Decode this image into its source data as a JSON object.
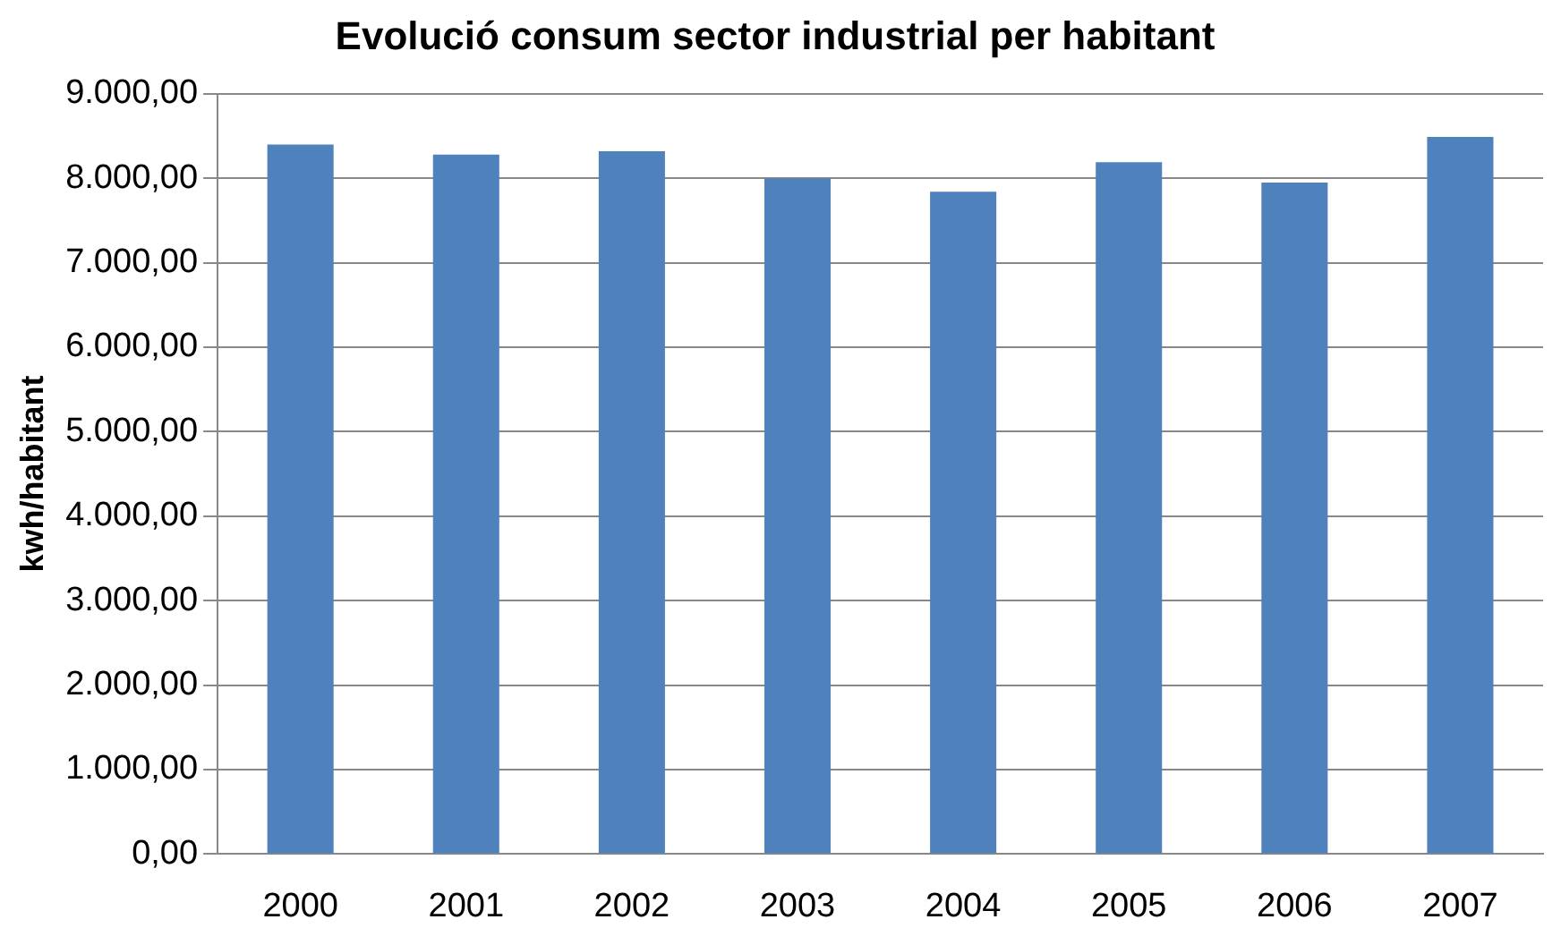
{
  "chart_data": {
    "type": "bar",
    "title": "Evolució consum sector industrial per habitant",
    "ylabel": "kwh/habitant",
    "categories": [
      "2000",
      "2001",
      "2002",
      "2003",
      "2004",
      "2005",
      "2006",
      "2007"
    ],
    "values": [
      8400,
      8280,
      8320,
      8000,
      7840,
      8190,
      7950,
      8490
    ],
    "color": "#4f81bd",
    "ylim": [
      0,
      9000
    ],
    "yticks": [
      {
        "value": 0,
        "label": "0,00"
      },
      {
        "value": 1000,
        "label": "1.000,00"
      },
      {
        "value": 2000,
        "label": "2.000,00"
      },
      {
        "value": 3000,
        "label": "3.000,00"
      },
      {
        "value": 4000,
        "label": "4.000,00"
      },
      {
        "value": 5000,
        "label": "5.000,00"
      },
      {
        "value": 6000,
        "label": "6.000,00"
      },
      {
        "value": 7000,
        "label": "7.000,00"
      },
      {
        "value": 8000,
        "label": "8.000,00"
      },
      {
        "value": 9000,
        "label": "9.000,00"
      }
    ],
    "grid": "y",
    "legend": false
  }
}
